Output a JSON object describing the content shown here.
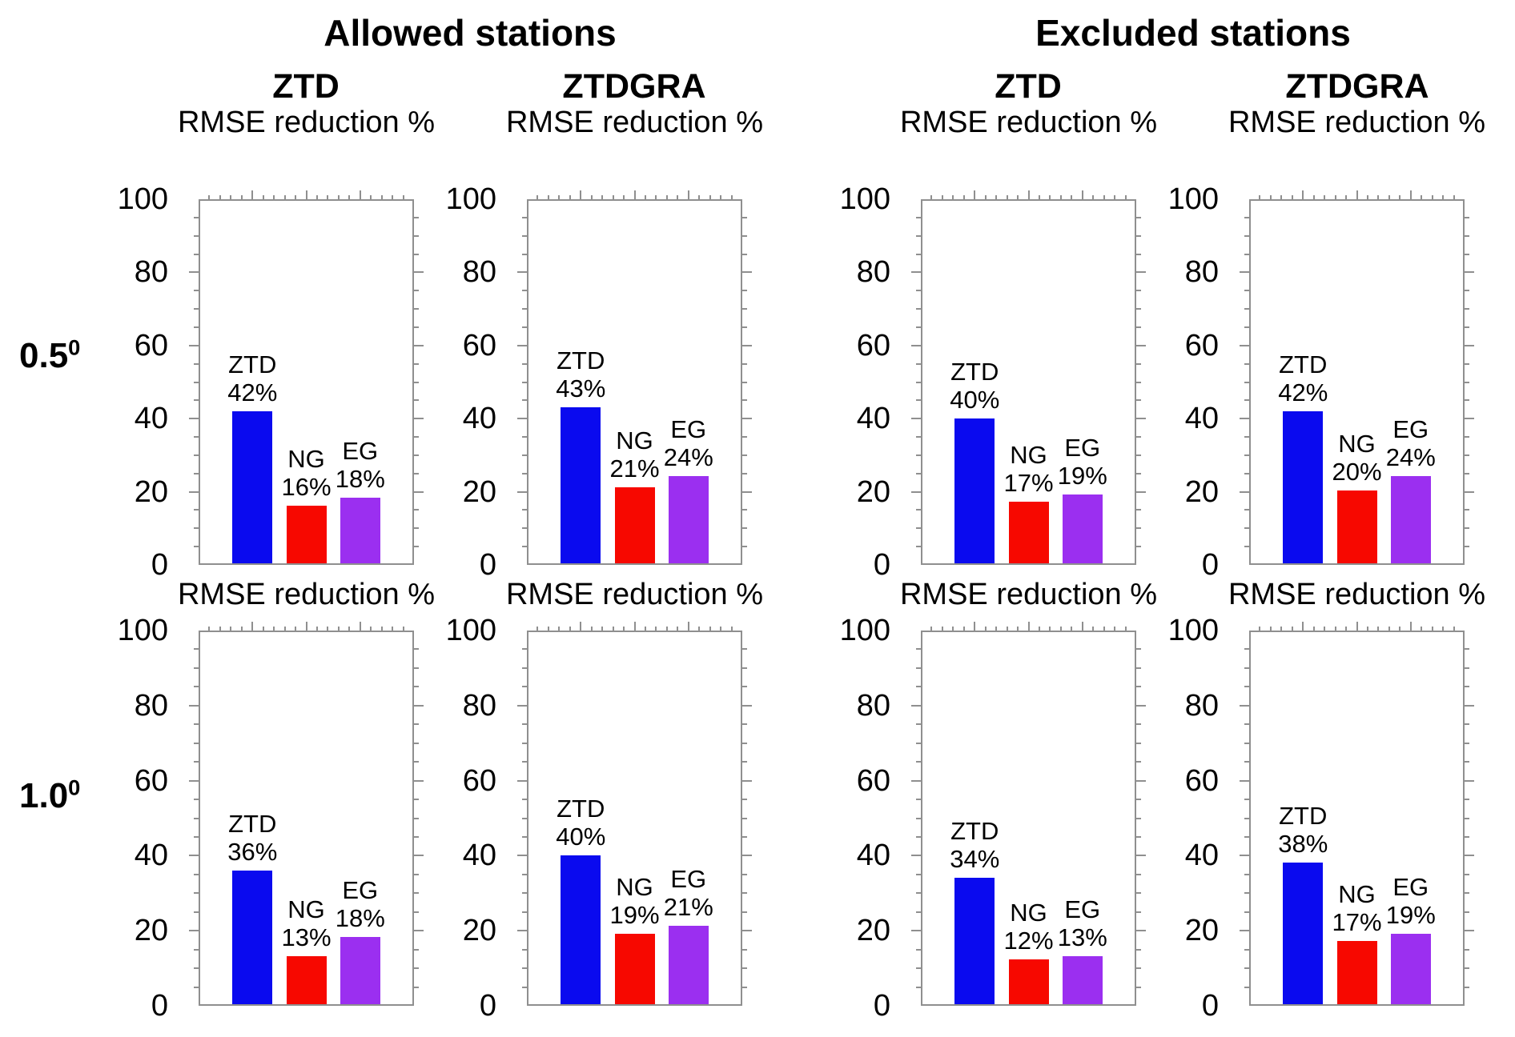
{
  "figure": {
    "background": "#ffffff",
    "frame_color": "#8f8f8f",
    "text_color": "#000000"
  },
  "groups": [
    {
      "label": "Allowed stations"
    },
    {
      "label": "Excluded stations"
    }
  ],
  "column_headers": [
    "ZTD",
    "ZTDGRA",
    "ZTD",
    "ZTDGRA"
  ],
  "row_labels": [
    {
      "text": "0.5",
      "sup": "0"
    },
    {
      "text": "1.0",
      "sup": "0"
    }
  ],
  "axis": {
    "title": "RMSE reduction %",
    "ymin": 0,
    "ymax": 100,
    "tick_labels": [
      "0",
      "20",
      "40",
      "60",
      "80",
      "100"
    ],
    "tick_values": [
      0,
      20,
      40,
      60,
      80,
      100
    ],
    "minor_step": 5
  },
  "series_colors": {
    "ZTD": "#0a0aef",
    "NG": "#f70800",
    "EG": "#9b2ff0"
  },
  "chart_data": [
    {
      "type": "bar",
      "row": "0.5",
      "station_group": "Allowed stations",
      "solution": "ZTD",
      "title": "RMSE reduction %",
      "ylim": [
        0,
        100
      ],
      "grid": false,
      "legend": "none",
      "categories": [
        "ZTD",
        "NG",
        "EG"
      ],
      "values": [
        42,
        16,
        18
      ],
      "bar_labels": [
        [
          "ZTD",
          "42%"
        ],
        [
          "NG",
          "16%"
        ],
        [
          "EG",
          "18%"
        ]
      ]
    },
    {
      "type": "bar",
      "row": "0.5",
      "station_group": "Allowed stations",
      "solution": "ZTDGRA",
      "title": "RMSE reduction %",
      "ylim": [
        0,
        100
      ],
      "grid": false,
      "legend": "none",
      "categories": [
        "ZTD",
        "NG",
        "EG"
      ],
      "values": [
        43,
        21,
        24
      ],
      "bar_labels": [
        [
          "ZTD",
          "43%"
        ],
        [
          "NG",
          "21%"
        ],
        [
          "EG",
          "24%"
        ]
      ]
    },
    {
      "type": "bar",
      "row": "0.5",
      "station_group": "Excluded stations",
      "solution": "ZTD",
      "title": "RMSE reduction %",
      "ylim": [
        0,
        100
      ],
      "grid": false,
      "legend": "none",
      "categories": [
        "ZTD",
        "NG",
        "EG"
      ],
      "values": [
        40,
        17,
        19
      ],
      "bar_labels": [
        [
          "ZTD",
          "40%"
        ],
        [
          "NG",
          "17%"
        ],
        [
          "EG",
          "19%"
        ]
      ]
    },
    {
      "type": "bar",
      "row": "0.5",
      "station_group": "Excluded stations",
      "solution": "ZTDGRA",
      "title": "RMSE reduction %",
      "ylim": [
        0,
        100
      ],
      "grid": false,
      "legend": "none",
      "categories": [
        "ZTD",
        "NG",
        "EG"
      ],
      "values": [
        42,
        20,
        24
      ],
      "bar_labels": [
        [
          "ZTD",
          "42%"
        ],
        [
          "NG",
          "20%"
        ],
        [
          "EG",
          "24%"
        ]
      ]
    },
    {
      "type": "bar",
      "row": "1.0",
      "station_group": "Allowed stations",
      "solution": "ZTD",
      "title": "RMSE reduction %",
      "ylim": [
        0,
        100
      ],
      "grid": false,
      "legend": "none",
      "categories": [
        "ZTD",
        "NG",
        "EG"
      ],
      "values": [
        36,
        13,
        18
      ],
      "bar_labels": [
        [
          "ZTD",
          "36%"
        ],
        [
          "NG",
          "13%"
        ],
        [
          "EG",
          "18%"
        ]
      ]
    },
    {
      "type": "bar",
      "row": "1.0",
      "station_group": "Allowed stations",
      "solution": "ZTDGRA",
      "title": "RMSE reduction %",
      "ylim": [
        0,
        100
      ],
      "grid": false,
      "legend": "none",
      "categories": [
        "ZTD",
        "NG",
        "EG"
      ],
      "values": [
        40,
        19,
        21
      ],
      "bar_labels": [
        [
          "ZTD",
          "40%"
        ],
        [
          "NG",
          "19%"
        ],
        [
          "EG",
          "21%"
        ]
      ]
    },
    {
      "type": "bar",
      "row": "1.0",
      "station_group": "Excluded stations",
      "solution": "ZTD",
      "title": "RMSE reduction %",
      "ylim": [
        0,
        100
      ],
      "grid": false,
      "legend": "none",
      "categories": [
        "ZTD",
        "NG",
        "EG"
      ],
      "values": [
        34,
        12,
        13
      ],
      "bar_labels": [
        [
          "ZTD",
          "34%"
        ],
        [
          "NG",
          "12%"
        ],
        [
          "EG",
          "13%"
        ]
      ]
    },
    {
      "type": "bar",
      "row": "1.0",
      "station_group": "Excluded stations",
      "solution": "ZTDGRA",
      "title": "RMSE reduction %",
      "ylim": [
        0,
        100
      ],
      "grid": false,
      "legend": "none",
      "categories": [
        "ZTD",
        "NG",
        "EG"
      ],
      "values": [
        38,
        17,
        19
      ],
      "bar_labels": [
        [
          "ZTD",
          "38%"
        ],
        [
          "NG",
          "17%"
        ],
        [
          "EG",
          "19%"
        ]
      ]
    }
  ]
}
